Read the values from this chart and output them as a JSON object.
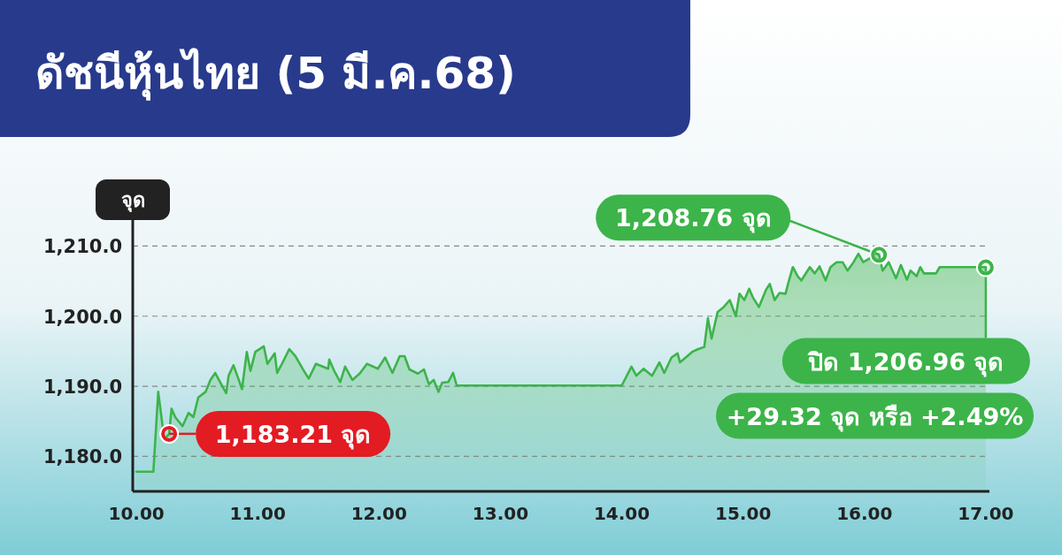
{
  "chart_data": {
    "type": "area",
    "title": "ดัชนีหุ้นไทย (5 มี.ค.68)",
    "ylabel": "จุด",
    "x": [
      10.0,
      10.14,
      10.18,
      10.23,
      10.27,
      10.29,
      10.32,
      10.38,
      10.43,
      10.47,
      10.51,
      10.57,
      10.61,
      10.65,
      10.68,
      10.74,
      10.76,
      10.8,
      10.84,
      10.87,
      10.91,
      10.94,
      10.98,
      11.05,
      11.08,
      11.14,
      11.16,
      11.2,
      11.26,
      11.31,
      11.37,
      11.42,
      11.48,
      11.58,
      11.59,
      11.63,
      11.68,
      11.72,
      11.78,
      11.84,
      11.9,
      11.99,
      12.05,
      12.11,
      12.17,
      12.21,
      12.25,
      12.32,
      12.37,
      12.41,
      12.45,
      12.49,
      12.52,
      12.57,
      12.61,
      12.64,
      14.0,
      14.08,
      14.12,
      14.18,
      14.25,
      14.31,
      14.35,
      14.41,
      14.46,
      14.48,
      14.54,
      14.58,
      14.63,
      14.68,
      14.71,
      14.74,
      14.79,
      14.84,
      14.89,
      14.94,
      14.97,
      15.01,
      15.05,
      15.08,
      15.13,
      15.19,
      15.22,
      15.26,
      15.3,
      15.35,
      15.37,
      15.41,
      15.45,
      15.48,
      15.55,
      15.59,
      15.63,
      15.68,
      15.72,
      15.77,
      15.82,
      15.86,
      15.91,
      15.95,
      15.99,
      16.04,
      16.09,
      16.12,
      16.15,
      16.2,
      16.26,
      16.3,
      16.35,
      16.38,
      16.43,
      16.46,
      16.49,
      16.59,
      16.62,
      17.0
    ],
    "series": [
      {
        "color": "#3cb44a",
        "values": [
          1177.8,
          1177.8,
          1189.2,
          1182.4,
          1183.2,
          1186.8,
          1185.6,
          1184.3,
          1186.2,
          1185.6,
          1188.4,
          1189.2,
          1190.9,
          1191.9,
          1190.9,
          1189.0,
          1191.5,
          1193.0,
          1191.1,
          1189.6,
          1194.9,
          1192.2,
          1194.9,
          1195.7,
          1193.2,
          1194.7,
          1191.9,
          1193.2,
          1195.3,
          1194.3,
          1192.5,
          1191.1,
          1193.2,
          1192.5,
          1193.8,
          1192.2,
          1190.6,
          1192.8,
          1190.9,
          1191.8,
          1193.2,
          1192.5,
          1194.1,
          1191.9,
          1194.3,
          1194.3,
          1192.4,
          1191.8,
          1192.4,
          1190.3,
          1190.9,
          1189.2,
          1190.5,
          1190.6,
          1191.9,
          1190.1,
          1190.1,
          1192.8,
          1191.5,
          1192.5,
          1191.5,
          1193.4,
          1191.9,
          1194.1,
          1194.7,
          1193.4,
          1194.3,
          1194.9,
          1195.3,
          1195.6,
          1199.7,
          1196.8,
          1200.6,
          1201.3,
          1202.3,
          1200.0,
          1203.2,
          1202.3,
          1203.9,
          1202.7,
          1201.3,
          1203.8,
          1204.6,
          1202.3,
          1203.3,
          1203.2,
          1204.6,
          1207.0,
          1205.7,
          1205.1,
          1207.0,
          1206.1,
          1207.1,
          1205.1,
          1207.0,
          1207.7,
          1207.7,
          1206.5,
          1207.7,
          1208.9,
          1207.7,
          1208.2,
          1209.0,
          1208.8,
          1206.5,
          1207.7,
          1205.4,
          1207.3,
          1205.2,
          1206.5,
          1205.7,
          1207.0,
          1206.1,
          1206.1,
          1207.0,
          1207.0
        ]
      }
    ],
    "xlim": [
      9.97,
      17.03
    ],
    "xticks": [
      {
        "value": 10,
        "label": "10.00"
      },
      {
        "value": 11,
        "label": "11.00"
      },
      {
        "value": 12,
        "label": "12.00"
      },
      {
        "value": 13,
        "label": "13.00"
      },
      {
        "value": 14,
        "label": "14.00"
      },
      {
        "value": 15,
        "label": "15.00"
      },
      {
        "value": 16,
        "label": "16.00"
      },
      {
        "value": 17,
        "label": "17.00"
      }
    ],
    "ylim": [
      1175,
      1218
    ],
    "yticks": [
      {
        "value": 1180,
        "label": "1,180.0"
      },
      {
        "value": 1190,
        "label": "1,190.0"
      },
      {
        "value": 1200,
        "label": "1,200.0"
      },
      {
        "value": 1210,
        "label": "1,210.0"
      }
    ],
    "grid": "y",
    "line_style": "solid",
    "annotations": [
      {
        "text": "1,183.21 จุด",
        "x": 10.27,
        "y": 1183.21
      },
      {
        "text": "1,208.76 จุด",
        "x": 16.12,
        "y": 1208.76
      },
      {
        "text": "ปิด 1,206.96 จุด",
        "x": 17.0,
        "y": 1206.96
      },
      "+29.32 จุด หรือ +2.49%"
    ]
  }
}
